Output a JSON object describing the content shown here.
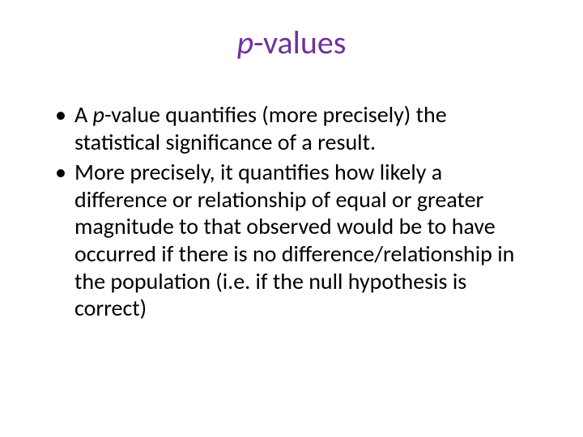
{
  "slide": {
    "title_italic": "p",
    "title_rest": "-values",
    "title_color": "#7030a0",
    "title_fontsize": 40,
    "body_fontsize": 28,
    "body_color": "#000000",
    "background_color": "#ffffff",
    "bullets": [
      {
        "prefix": "A ",
        "italic": "p",
        "rest": "-value quantifies (more precisely) the statistical significance of a result."
      },
      {
        "prefix": "",
        "italic": "",
        "rest": "More precisely, it quantifies how likely a difference or relationship of equal or greater magnitude to that observed would be to have occurred if there is no difference/relationship in the population (i.e. if the null hypothesis is correct)"
      }
    ]
  }
}
